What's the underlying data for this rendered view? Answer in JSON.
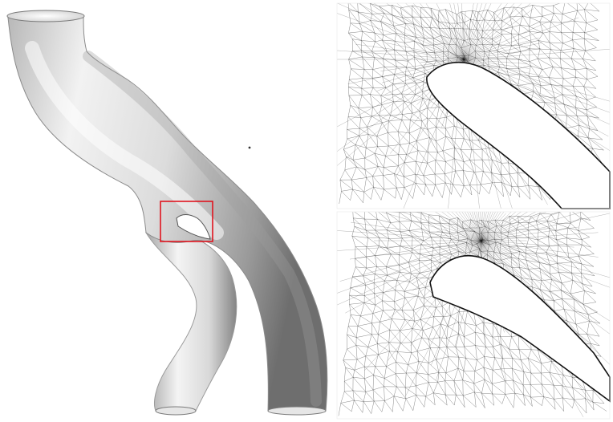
{
  "figure": {
    "panels": [
      {
        "id": "vessel-render",
        "description_icon": "vessel-surface-render"
      },
      {
        "id": "mesh-detail-top",
        "description_icon": "triangle-mesh-wireframe"
      },
      {
        "id": "mesh-detail-bottom",
        "description_icon": "triangle-mesh-wireframe-refined"
      }
    ],
    "colors": {
      "background": "#ffffff",
      "highlight_box": "#e0141e",
      "mesh_line": "#1a1a1a",
      "vessel_light": "#f4f4f4",
      "vessel_shadow": "#8c8c8c"
    }
  }
}
